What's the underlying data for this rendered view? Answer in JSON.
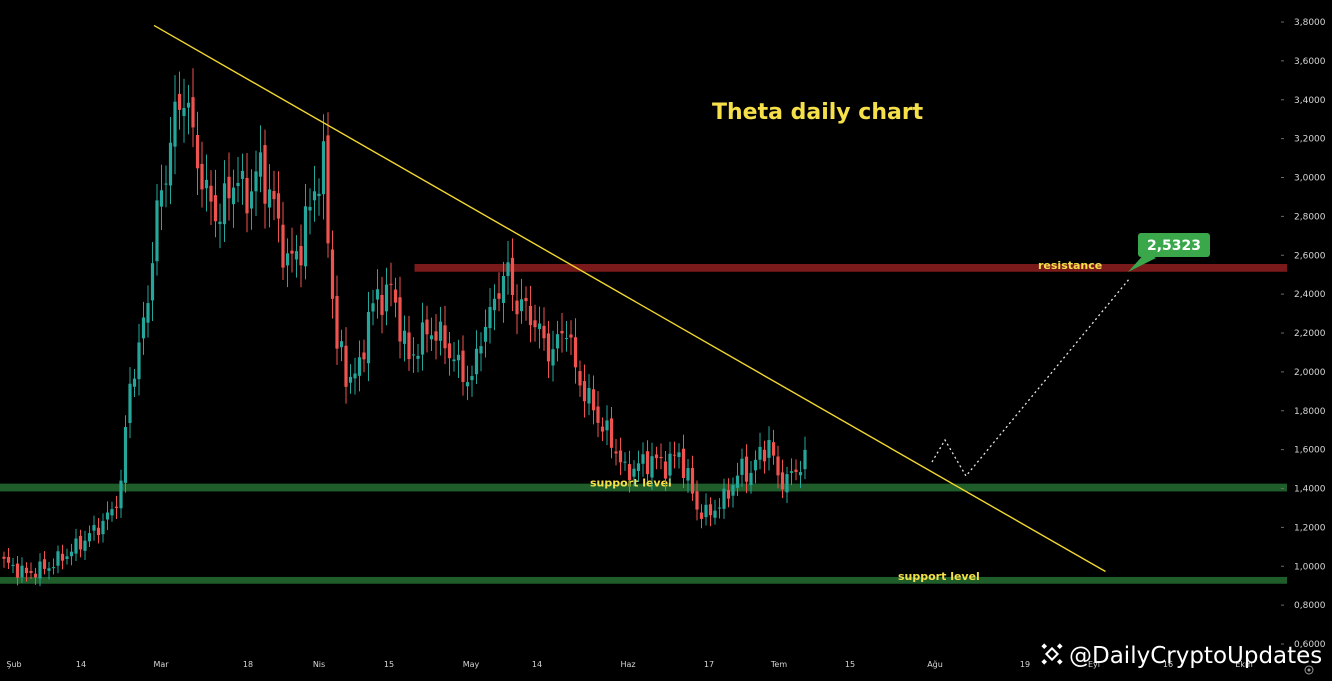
{
  "chart_data": {
    "type": "candlestick",
    "title": "Theta daily chart",
    "colors": {
      "background": "#000000",
      "up": "#26a69a",
      "down": "#ef5350",
      "trendline": "#f2d72e",
      "support_zone": "#1f5e2b",
      "resistance_zone": "#7a1a1a",
      "label": "#f5e04a",
      "target_badge": "#3aa74a",
      "axis_text": "#d6d6d6"
    },
    "y_axis": {
      "min": 0.6,
      "max": 3.8,
      "ticks": [
        "0,6000",
        "0,8000",
        "1,0000",
        "1,2000",
        "1,4000",
        "1,6000",
        "1,8000",
        "2,0000",
        "2,2000",
        "2,4000",
        "2,6000",
        "2,8000",
        "3,0000",
        "3,2000",
        "3,4000",
        "3,6000",
        "3,8000"
      ]
    },
    "x_axis": {
      "ticks": [
        {
          "label": "Şub",
          "day": 0
        },
        {
          "label": "14",
          "day": 13
        },
        {
          "label": "Mar",
          "day": 28
        },
        {
          "label": "18",
          "day": 45
        },
        {
          "label": "Nis",
          "day": 59
        },
        {
          "label": "15",
          "day": 73
        },
        {
          "label": "May",
          "day": 89
        },
        {
          "label": "14",
          "day": 102
        },
        {
          "label": "Haz",
          "day": 120
        },
        {
          "label": "17",
          "day": 136
        },
        {
          "label": "Tem",
          "day": 150
        },
        {
          "label": "15",
          "day": 164
        },
        {
          "label": "Ağu",
          "day": 181
        },
        {
          "label": "19",
          "day": 199
        },
        {
          "label": "Eyl",
          "day": 212
        },
        {
          "label": "16",
          "day": 227
        },
        {
          "label": "Ekm",
          "day": 242
        }
      ]
    },
    "anchors": [
      [
        0,
        1.02
      ],
      [
        5,
        0.96
      ],
      [
        10,
        1.0
      ],
      [
        15,
        1.08
      ],
      [
        20,
        1.18
      ],
      [
        24,
        1.28
      ],
      [
        26,
        1.42
      ],
      [
        28,
        1.95
      ],
      [
        30,
        2.1
      ],
      [
        32,
        2.4
      ],
      [
        34,
        2.8
      ],
      [
        36,
        3.05
      ],
      [
        38,
        3.3
      ],
      [
        40,
        3.45
      ],
      [
        42,
        3.2
      ],
      [
        45,
        2.9
      ],
      [
        48,
        2.8
      ],
      [
        51,
        3.0
      ],
      [
        54,
        2.9
      ],
      [
        57,
        3.05
      ],
      [
        60,
        2.85
      ],
      [
        63,
        2.55
      ],
      [
        66,
        2.65
      ],
      [
        69,
        2.95
      ],
      [
        71,
        3.05
      ],
      [
        72,
        2.7
      ],
      [
        73,
        2.4
      ],
      [
        74,
        2.15
      ],
      [
        76,
        1.98
      ],
      [
        79,
        2.0
      ],
      [
        81,
        2.3
      ],
      [
        84,
        2.4
      ],
      [
        86,
        2.42
      ],
      [
        88,
        2.25
      ],
      [
        90,
        2.05
      ],
      [
        92,
        2.15
      ],
      [
        95,
        2.22
      ],
      [
        98,
        2.15
      ],
      [
        101,
        2.02
      ],
      [
        104,
        1.95
      ],
      [
        106,
        2.2
      ],
      [
        108,
        2.28
      ],
      [
        110,
        2.45
      ],
      [
        112,
        2.5
      ],
      [
        114,
        2.35
      ],
      [
        117,
        2.3
      ],
      [
        120,
        2.15
      ],
      [
        122,
        2.1
      ],
      [
        125,
        2.25
      ],
      [
        127,
        2.0
      ],
      [
        130,
        1.85
      ],
      [
        133,
        1.72
      ],
      [
        136,
        1.6
      ],
      [
        138,
        1.48
      ],
      [
        141,
        1.52
      ],
      [
        144,
        1.55
      ],
      [
        147,
        1.52
      ],
      [
        150,
        1.58
      ],
      [
        152,
        1.45
      ],
      [
        154,
        1.3
      ],
      [
        156,
        1.26
      ],
      [
        158,
        1.3
      ],
      [
        160,
        1.34
      ],
      [
        162,
        1.43
      ],
      [
        164,
        1.5
      ],
      [
        166,
        1.48
      ],
      [
        168,
        1.58
      ],
      [
        170,
        1.63
      ],
      [
        172,
        1.46
      ],
      [
        174,
        1.44
      ],
      [
        176,
        1.5
      ],
      [
        178,
        1.55
      ]
    ],
    "trendline": {
      "from": {
        "day": 20,
        "value": 3.7
      },
      "to": {
        "day": 147,
        "value": 1.05
      }
    },
    "resistance_zone": {
      "value_low": 2.515,
      "value_high": 2.555,
      "start_day": 55,
      "label": "resistance"
    },
    "support_zones": [
      {
        "value_low": 1.385,
        "value_high": 1.425,
        "label": "support level"
      },
      {
        "value_low": 0.91,
        "value_high": 0.945,
        "label": "support level"
      }
    ],
    "projection": [
      {
        "day": 124,
        "value": 1.58
      },
      {
        "day": 127,
        "value": 1.64
      },
      {
        "day": 130,
        "value": 1.46
      },
      {
        "day": 150,
        "value": 2.49
      }
    ],
    "target": {
      "value": 2.5323,
      "label": "2,5323"
    }
  },
  "watermark": {
    "text": "@DailyCryptoUpdates"
  }
}
